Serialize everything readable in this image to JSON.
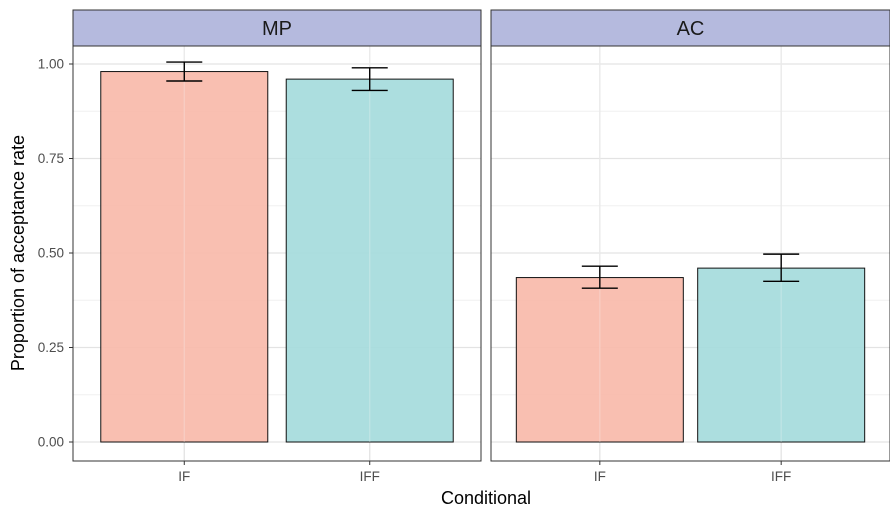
{
  "chart_data": {
    "type": "bar",
    "xlabel": "Conditional",
    "ylabel": "Proportion of acceptance rate",
    "ylim": [
      0,
      1.05
    ],
    "y_ticks": [
      0,
      0.25,
      0.5,
      0.75,
      1.0
    ],
    "y_tick_labels": [
      "0.00",
      "0.25",
      "0.50",
      "0.75",
      "1.00"
    ],
    "grid": true,
    "legend": "none",
    "categories": [
      "IF",
      "IFF"
    ],
    "colors": {
      "IF": "#f8b8a8",
      "IFF": "#a3dadc",
      "strip": "#b5bade"
    },
    "panels": [
      {
        "name": "MP",
        "values": [
          0.98,
          0.96
        ],
        "err_low": [
          0.955,
          0.93
        ],
        "err_high": [
          1.005,
          0.99
        ]
      },
      {
        "name": "AC",
        "values": [
          0.435,
          0.46
        ],
        "err_low": [
          0.407,
          0.425
        ],
        "err_high": [
          0.465,
          0.497
        ]
      }
    ]
  }
}
